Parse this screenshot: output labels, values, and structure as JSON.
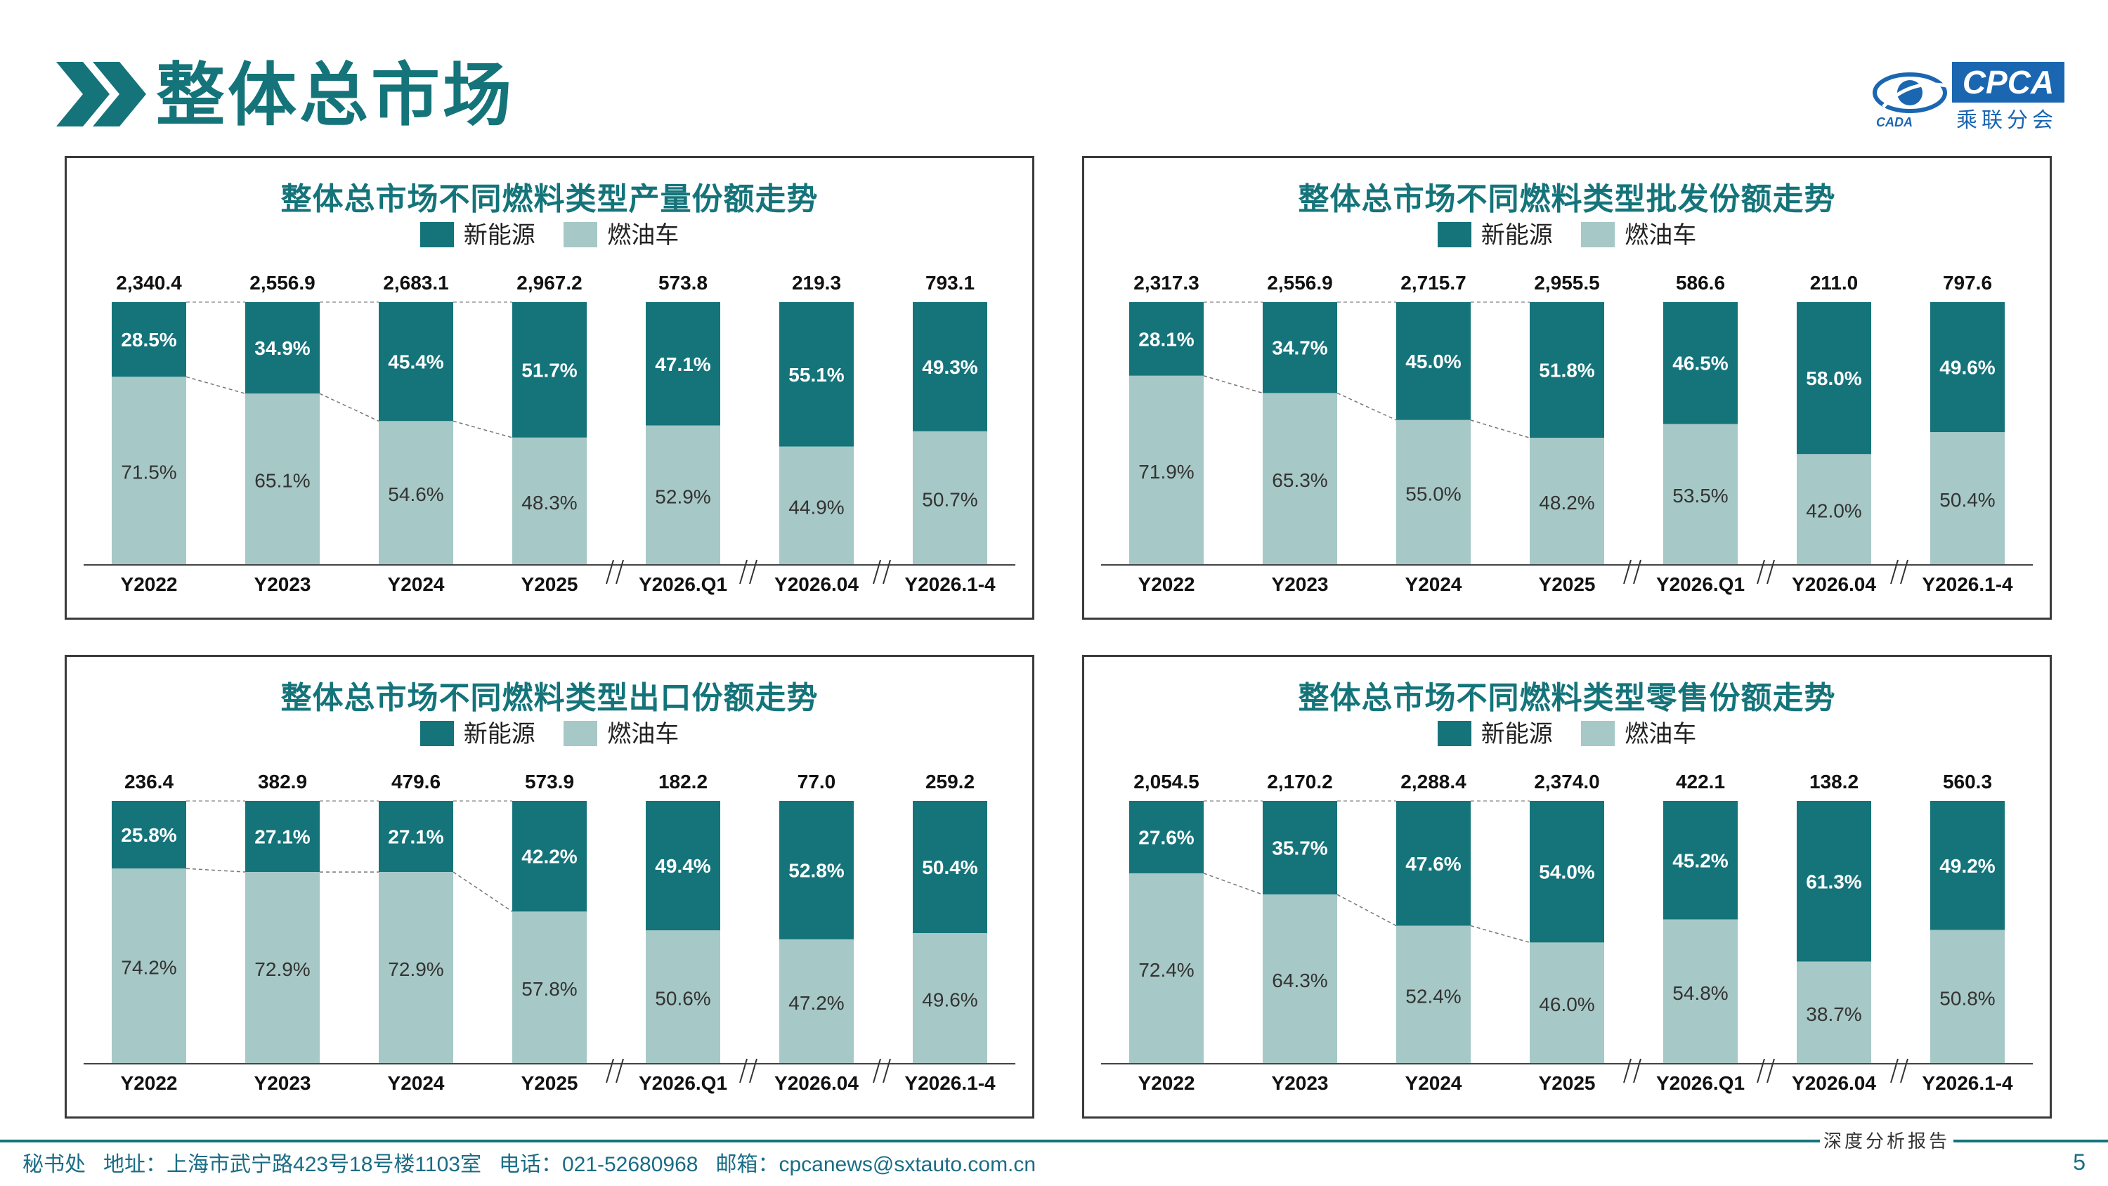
{
  "page": {
    "title": "整体总市场",
    "logo_text": "CPCA",
    "logo_sub": "乘联分会",
    "logo_small": "CADA",
    "report_label": "深度分析报告",
    "footer": "秘书处   地址：上海市武宁路423号18号楼1103室   电话：021-52680968   邮箱：cpcanews@sxtauto.com.cn",
    "page_number": "5"
  },
  "colors": {
    "nev": "#14747a",
    "ice": "#a6c8c6",
    "accent": "#14747a"
  },
  "chart_data": [
    {
      "type": "bar",
      "stacked": "percent",
      "title": "整体总市场不同燃料类型产量份额走势",
      "legend": [
        "新能源",
        "燃油车"
      ],
      "categories": [
        "Y2022",
        "Y2023",
        "Y2024",
        "Y2025",
        "Y2026.Q1",
        "Y2026.04",
        "Y2026.1-4"
      ],
      "totals": [
        "2,340.4",
        "2,556.9",
        "2,683.1",
        "2,967.2",
        "573.8",
        "219.3",
        "793.1"
      ],
      "series": [
        {
          "name": "新能源",
          "values": [
            28.5,
            34.9,
            45.4,
            51.7,
            47.1,
            55.1,
            49.3
          ]
        },
        {
          "name": "燃油车",
          "values": [
            71.5,
            65.1,
            54.6,
            48.3,
            52.9,
            44.9,
            50.7
          ]
        }
      ],
      "ylim": [
        0,
        100
      ]
    },
    {
      "type": "bar",
      "stacked": "percent",
      "title": "整体总市场不同燃料类型批发份额走势",
      "legend": [
        "新能源",
        "燃油车"
      ],
      "categories": [
        "Y2022",
        "Y2023",
        "Y2024",
        "Y2025",
        "Y2026.Q1",
        "Y2026.04",
        "Y2026.1-4"
      ],
      "totals": [
        "2,317.3",
        "2,556.9",
        "2,715.7",
        "2,955.5",
        "586.6",
        "211.0",
        "797.6"
      ],
      "series": [
        {
          "name": "新能源",
          "values": [
            28.1,
            34.7,
            45.0,
            51.8,
            46.5,
            58.0,
            49.6
          ]
        },
        {
          "name": "燃油车",
          "values": [
            71.9,
            65.3,
            55.0,
            48.2,
            53.5,
            42.0,
            50.4
          ]
        }
      ],
      "ylim": [
        0,
        100
      ]
    },
    {
      "type": "bar",
      "stacked": "percent",
      "title": "整体总市场不同燃料类型出口份额走势",
      "legend": [
        "新能源",
        "燃油车"
      ],
      "categories": [
        "Y2022",
        "Y2023",
        "Y2024",
        "Y2025",
        "Y2026.Q1",
        "Y2026.04",
        "Y2026.1-4"
      ],
      "totals": [
        "236.4",
        "382.9",
        "479.6",
        "573.9",
        "182.2",
        "77.0",
        "259.2"
      ],
      "series": [
        {
          "name": "新能源",
          "values": [
            25.8,
            27.1,
            27.1,
            42.2,
            49.4,
            52.8,
            50.4
          ]
        },
        {
          "name": "燃油车",
          "values": [
            74.2,
            72.9,
            72.9,
            57.8,
            50.6,
            47.2,
            49.6
          ]
        }
      ],
      "ylim": [
        0,
        100
      ]
    },
    {
      "type": "bar",
      "stacked": "percent",
      "title": "整体总市场不同燃料类型零售份额走势",
      "legend": [
        "新能源",
        "燃油车"
      ],
      "categories": [
        "Y2022",
        "Y2023",
        "Y2024",
        "Y2025",
        "Y2026.Q1",
        "Y2026.04",
        "Y2026.1-4"
      ],
      "totals": [
        "2,054.5",
        "2,170.2",
        "2,288.4",
        "2,374.0",
        "422.1",
        "138.2",
        "560.3"
      ],
      "series": [
        {
          "name": "新能源",
          "values": [
            27.6,
            35.7,
            47.6,
            54.0,
            45.2,
            61.3,
            49.2
          ]
        },
        {
          "name": "燃油车",
          "values": [
            72.4,
            64.3,
            52.4,
            46.0,
            54.8,
            38.7,
            50.8
          ]
        }
      ],
      "ylim": [
        0,
        100
      ]
    }
  ]
}
